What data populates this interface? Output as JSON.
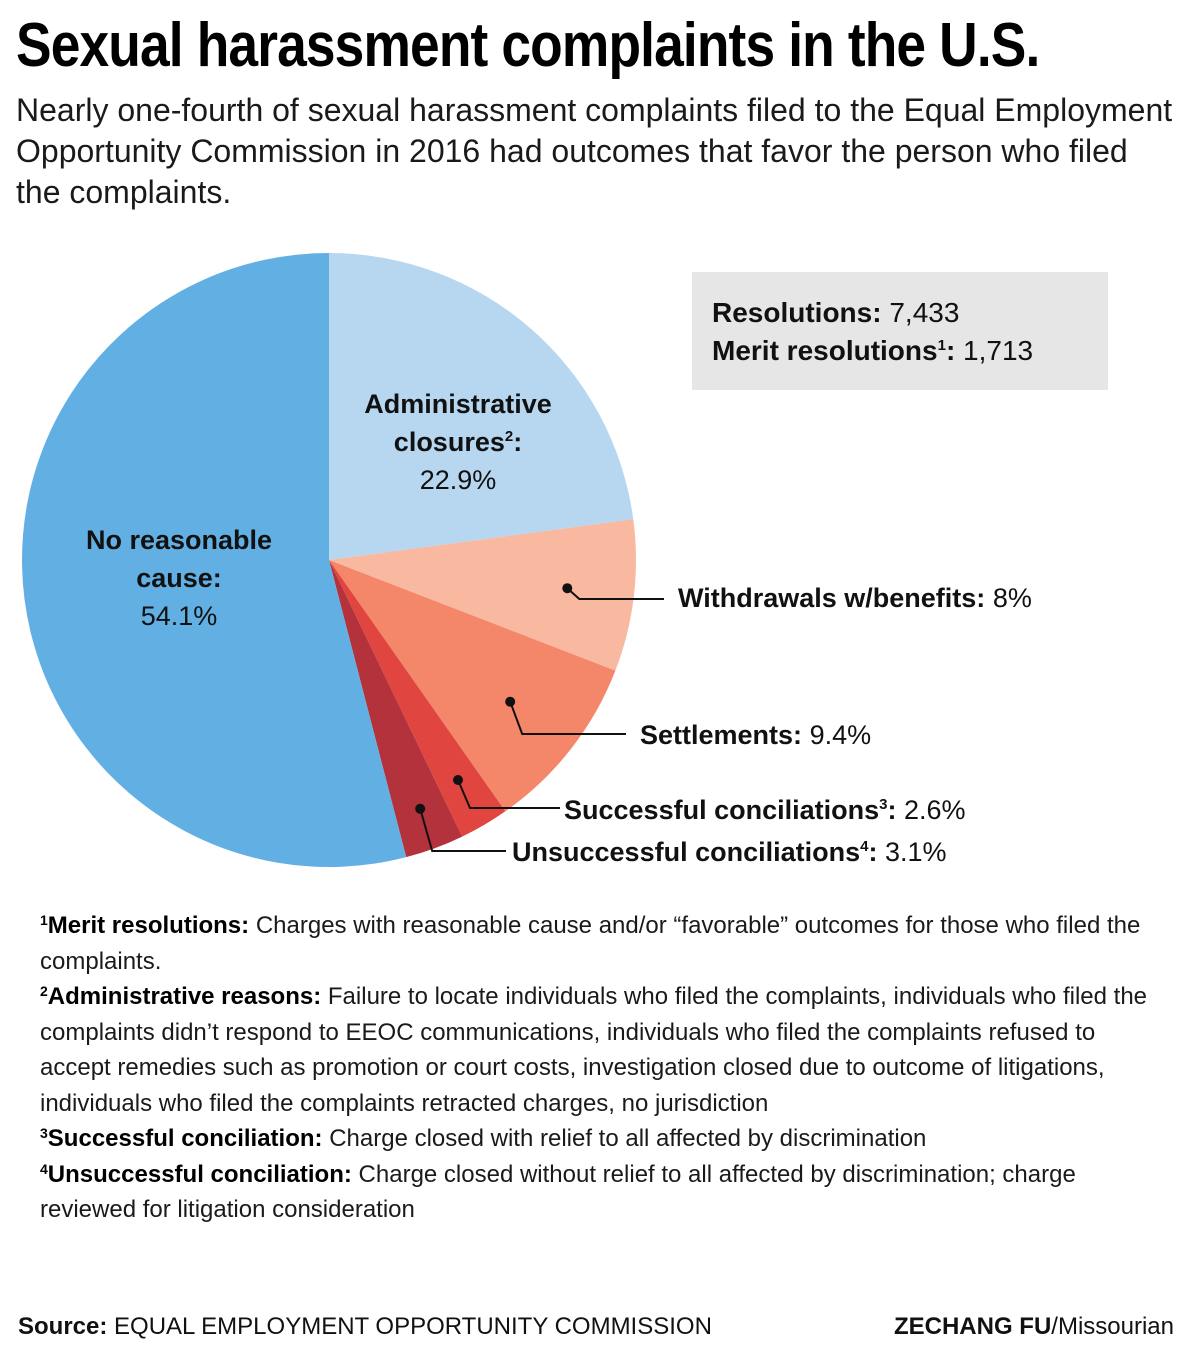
{
  "header": {
    "title": "Sexual harassment complaints in the U.S.",
    "subtitle": "Nearly one-fourth of sexual harassment complaints filed to the Equal Employment Opportunity Commission in 2016 had outcomes that favor the person who filed the complaints."
  },
  "stats": {
    "resolutions_label": "Resolutions:",
    "resolutions_value": "7,433",
    "merit_label": "Merit resolutions",
    "merit_sup": "1",
    "merit_colon": ":",
    "merit_value": "1,713"
  },
  "chart_data": {
    "type": "pie",
    "title": "Sexual harassment complaints in the U.S.",
    "slices": [
      {
        "name": "Administrative closures",
        "sup": "2",
        "value": 22.9,
        "label": "22.9%",
        "color": "#b7d7f1"
      },
      {
        "name": "Withdrawals w/benefits",
        "sup": "",
        "value": 8.0,
        "label": "8%",
        "color": "#f9b8a0"
      },
      {
        "name": "Settlements",
        "sup": "",
        "value": 9.4,
        "label": "9.4%",
        "color": "#f4876a"
      },
      {
        "name": "Successful conciliations",
        "sup": "3",
        "value": 2.6,
        "label": "2.6%",
        "color": "#e0463f"
      },
      {
        "name": "Unsuccessful conciliations",
        "sup": "4",
        "value": 3.1,
        "label": "3.1%",
        "color": "#b3323b"
      },
      {
        "name": "No reasonable cause",
        "sup": "",
        "value": 54.1,
        "label": "54.1%",
        "color": "#62b0e3"
      }
    ],
    "start": "12 o'clock",
    "direction": "clockwise"
  },
  "labels": {
    "admin_line1": "Administrative",
    "admin_line2": "closures",
    "admin_sup": "2",
    "admin_colon": ":",
    "admin_value": "22.9%",
    "nrc_line1": "No reasonable",
    "nrc_line2": "cause:",
    "nrc_value": "54.1%",
    "withdrawals_name": "Withdrawals w/benefits:",
    "withdrawals_value": "8%",
    "settlements_name": "Settlements:",
    "settlements_value": "9.4%",
    "successful_name": "Successful conciliations",
    "successful_sup": "3",
    "successful_colon": ":",
    "successful_value": "2.6%",
    "unsuccessful_name": "Unsuccessful conciliations",
    "unsuccessful_sup": "4",
    "unsuccessful_colon": ":",
    "unsuccessful_value": "3.1%"
  },
  "notes": [
    {
      "num": "1",
      "term": "Merit resolutions:",
      "text": "Charges with reasonable cause and/or “favorable” outcomes for those who filed the complaints."
    },
    {
      "num": "2",
      "term": "Administrative reasons:",
      "text": "Failure to locate individuals who filed the complaints, individuals who filed the complaints didn’t respond to EEOC communications, individuals who filed the complaints refused to accept remedies such as promotion or court costs, investigation closed due to outcome of litigations, individuals who filed the complaints retracted charges, no jurisdiction"
    },
    {
      "num": "3",
      "term": "Successful conciliation:",
      "text": "Charge closed with relief to all affected by discrimination"
    },
    {
      "num": "4",
      "term": "Unsuccessful conciliation:",
      "text": "Charge closed without relief to all affected by discrimination; charge reviewed for litigation consideration"
    }
  ],
  "footer": {
    "source_label": "Source:",
    "source_text": "EQUAL EMPLOYMENT OPPORTUNITY COMMISSION",
    "credit_name": "ZECHANG FU",
    "credit_org": "/Missourian"
  }
}
